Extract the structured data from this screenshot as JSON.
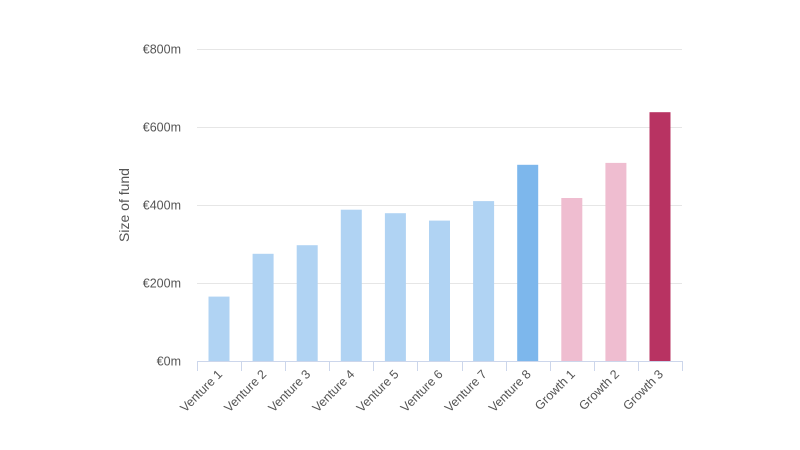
{
  "chart_data": {
    "type": "bar",
    "title": "",
    "xlabel": "",
    "ylabel": "Size of fund",
    "ylim": [
      0,
      800
    ],
    "yticks": [
      {
        "value": 0,
        "label": "€0m"
      },
      {
        "value": 200,
        "label": "€200m"
      },
      {
        "value": 400,
        "label": "€400m"
      },
      {
        "value": 600,
        "label": "€600m"
      },
      {
        "value": 800,
        "label": "€800m"
      }
    ],
    "grid": true,
    "legend": "none",
    "categories": [
      "Venture 1",
      "Venture 2",
      "Venture 3",
      "Venture 4",
      "Venture 5",
      "Venture 6",
      "Venture 7",
      "Venture 8",
      "Growth 1",
      "Growth 2",
      "Growth 3"
    ],
    "values": [
      165,
      275,
      297,
      388,
      379,
      360,
      410,
      503,
      418,
      508,
      638
    ],
    "colors": [
      "#b0d3f3",
      "#b0d3f3",
      "#b0d3f3",
      "#b0d3f3",
      "#b0d3f3",
      "#b0d3f3",
      "#b0d3f3",
      "#7db7ec",
      "#efbdd0",
      "#efbdd0",
      "#b83362"
    ]
  }
}
